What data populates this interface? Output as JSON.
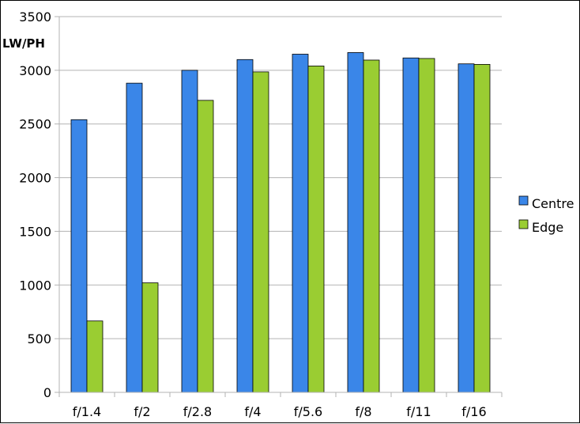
{
  "chart_data": {
    "type": "bar",
    "ylabel": "LW/PH",
    "categories": [
      "f/1.4",
      "f/2",
      "f/2.8",
      "f/4",
      "f/5.6",
      "f/8",
      "f/11",
      "f/16"
    ],
    "series": [
      {
        "name": "Centre",
        "color": "#3a86e8",
        "values": [
          2540,
          2880,
          3000,
          3100,
          3150,
          3165,
          3115,
          3060
        ]
      },
      {
        "name": "Edge",
        "color": "#9acd32",
        "values": [
          665,
          1020,
          2720,
          2985,
          3040,
          3095,
          3110,
          3055
        ]
      }
    ],
    "ylim": [
      0,
      3500
    ],
    "yticks": [
      "0",
      "500",
      "1000",
      "1500",
      "2000",
      "2500",
      "3000",
      "3500"
    ],
    "grid": true,
    "legend_position": "right"
  }
}
